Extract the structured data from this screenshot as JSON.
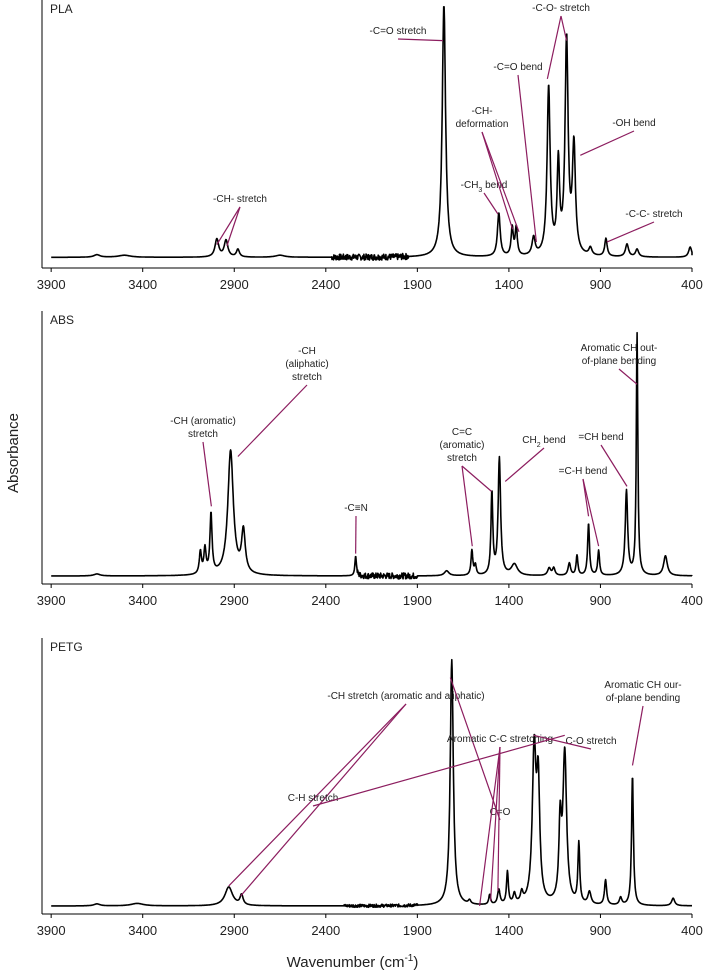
{
  "figure": {
    "y_label": "Absorbance",
    "x_label_main": "Wavenumber (cm",
    "x_label_sup": "-1",
    "x_label_end": ")"
  },
  "chart_data": [
    {
      "type": "line",
      "name": "PLA",
      "panel_label": "PLA",
      "xlabel": "Wavenumber (cm-1)",
      "ylabel": "Absorbance",
      "xlim": [
        3950,
        400
      ],
      "ylim": [
        0,
        1.0
      ],
      "x_reversed": true,
      "xticks": [
        3900,
        3400,
        2900,
        2400,
        1900,
        1400,
        900,
        400
      ],
      "baseline": 0.03,
      "peaks": [
        {
          "x": 3650,
          "h": 0.01,
          "w": 20
        },
        {
          "x": 3500,
          "h": 0.008,
          "w": 40
        },
        {
          "x": 2995,
          "h": 0.07,
          "w": 12
        },
        {
          "x": 2945,
          "h": 0.065,
          "w": 12
        },
        {
          "x": 2880,
          "h": 0.03,
          "w": 10
        },
        {
          "x": 2650,
          "h": 0.008,
          "w": 30
        },
        {
          "x": 1755,
          "h": 0.99,
          "w": 11
        },
        {
          "x": 1455,
          "h": 0.17,
          "w": 9
        },
        {
          "x": 1382,
          "h": 0.11,
          "w": 7
        },
        {
          "x": 1360,
          "h": 0.11,
          "w": 7
        },
        {
          "x": 1265,
          "h": 0.07,
          "w": 10
        },
        {
          "x": 1183,
          "h": 0.66,
          "w": 10
        },
        {
          "x": 1130,
          "h": 0.35,
          "w": 8
        },
        {
          "x": 1085,
          "h": 0.84,
          "w": 10
        },
        {
          "x": 1045,
          "h": 0.42,
          "w": 10
        },
        {
          "x": 955,
          "h": 0.03,
          "w": 10
        },
        {
          "x": 870,
          "h": 0.07,
          "w": 8
        },
        {
          "x": 755,
          "h": 0.05,
          "w": 10
        },
        {
          "x": 700,
          "h": 0.03,
          "w": 10
        },
        {
          "x": 410,
          "h": 0.04,
          "w": 10
        }
      ],
      "noise": [
        {
          "from": 2370,
          "to": 1950,
          "amp": 0.012
        }
      ],
      "annotations": [
        {
          "text": "-CH- stretch",
          "line_to": [
            [
              2995,
              0.08
            ],
            [
              2940,
              0.075
            ]
          ]
        },
        {
          "text": "-C=O stretch",
          "line_to": [
            [
              1760,
              0.88
            ]
          ]
        },
        {
          "text": "-CH3 bend",
          "line_to": [
            [
              1460,
              0.2
            ]
          ]
        },
        {
          "text": "-CH- deformation",
          "line_to": [
            [
              1380,
              0.14
            ],
            [
              1345,
              0.13
            ]
          ]
        },
        {
          "text": "-C=O bend",
          "line_to": [
            [
              1250,
              0.09
            ]
          ]
        },
        {
          "text": "-C-O- stretch",
          "line_to": [
            [
              1190,
              0.73
            ],
            [
              1085,
              0.88
            ]
          ]
        },
        {
          "text": "-OH bend",
          "line_to": [
            [
              1010,
              0.43
            ]
          ]
        },
        {
          "text": "-C-C- stretch",
          "line_to": [
            [
              865,
              0.09
            ]
          ]
        }
      ]
    },
    {
      "type": "line",
      "name": "ABS",
      "panel_label": "ABS",
      "xlabel": "Wavenumber (cm-1)",
      "ylabel": "Absorbance",
      "xlim": [
        3950,
        400
      ],
      "ylim": [
        0,
        1.0
      ],
      "x_reversed": true,
      "xticks": [
        3900,
        3400,
        2900,
        2400,
        1900,
        1400,
        900,
        400
      ],
      "baseline": 0.02,
      "peaks": [
        {
          "x": 3650,
          "h": 0.008,
          "w": 20
        },
        {
          "x": 3085,
          "h": 0.09,
          "w": 7
        },
        {
          "x": 3060,
          "h": 0.1,
          "w": 7
        },
        {
          "x": 3027,
          "h": 0.24,
          "w": 7
        },
        {
          "x": 2920,
          "h": 0.5,
          "w": 18
        },
        {
          "x": 2850,
          "h": 0.17,
          "w": 12
        },
        {
          "x": 2237,
          "h": 0.08,
          "w": 5
        },
        {
          "x": 1740,
          "h": 0.02,
          "w": 15
        },
        {
          "x": 1602,
          "h": 0.1,
          "w": 6
        },
        {
          "x": 1583,
          "h": 0.04,
          "w": 6
        },
        {
          "x": 1493,
          "h": 0.33,
          "w": 6
        },
        {
          "x": 1452,
          "h": 0.47,
          "w": 8
        },
        {
          "x": 1370,
          "h": 0.045,
          "w": 20
        },
        {
          "x": 1180,
          "h": 0.03,
          "w": 10
        },
        {
          "x": 1155,
          "h": 0.03,
          "w": 8
        },
        {
          "x": 1070,
          "h": 0.05,
          "w": 8
        },
        {
          "x": 1028,
          "h": 0.08,
          "w": 6
        },
        {
          "x": 965,
          "h": 0.21,
          "w": 6
        },
        {
          "x": 910,
          "h": 0.1,
          "w": 6
        },
        {
          "x": 758,
          "h": 0.34,
          "w": 8
        },
        {
          "x": 700,
          "h": 0.97,
          "w": 5
        },
        {
          "x": 545,
          "h": 0.08,
          "w": 12
        }
      ],
      "noise": [
        {
          "from": 2230,
          "to": 1900,
          "amp": 0.012
        }
      ],
      "annotations": [
        {
          "text": "-CH (aromatic) stretch",
          "line_to": [
            [
              3025,
              0.3
            ]
          ]
        },
        {
          "text": "-CH (aliphatic) stretch",
          "line_to": [
            [
              2880,
              0.5
            ]
          ]
        },
        {
          "text": "-C≡N",
          "line_to": [
            [
              2237,
              0.11
            ]
          ]
        },
        {
          "text": "C=C (aromatic) stretch",
          "line_to": [
            [
              1600,
              0.14
            ],
            [
              1495,
              0.36
            ]
          ]
        },
        {
          "text": "CH2 bend",
          "line_to": [
            [
              1420,
              0.4
            ]
          ]
        },
        {
          "text": "=C-H bend",
          "line_to": [
            [
              965,
              0.26
            ],
            [
              910,
              0.14
            ]
          ]
        },
        {
          "text": "=CH bend",
          "line_to": [
            [
              755,
              0.38
            ]
          ]
        },
        {
          "text": "Aromatic CH out-of-plane bending",
          "line_to": [
            [
              700,
              0.79
            ]
          ]
        }
      ]
    },
    {
      "type": "line",
      "name": "PETG",
      "panel_label": "PETG",
      "xlabel": "Wavenumber (cm-1)",
      "ylabel": "Absorbance",
      "xlim": [
        3950,
        400
      ],
      "ylim": [
        0,
        1.0
      ],
      "x_reversed": true,
      "xticks": [
        3900,
        3400,
        2900,
        2400,
        1900,
        1400,
        900,
        400
      ],
      "baseline": 0.02,
      "peaks": [
        {
          "x": 3650,
          "h": 0.008,
          "w": 20
        },
        {
          "x": 3430,
          "h": 0.01,
          "w": 40
        },
        {
          "x": 2930,
          "h": 0.075,
          "w": 25
        },
        {
          "x": 2860,
          "h": 0.04,
          "w": 10
        },
        {
          "x": 1712,
          "h": 0.98,
          "w": 10
        },
        {
          "x": 1615,
          "h": 0.015,
          "w": 8
        },
        {
          "x": 1505,
          "h": 0.04,
          "w": 6
        },
        {
          "x": 1455,
          "h": 0.06,
          "w": 8
        },
        {
          "x": 1408,
          "h": 0.13,
          "w": 6
        },
        {
          "x": 1370,
          "h": 0.04,
          "w": 8
        },
        {
          "x": 1330,
          "h": 0.04,
          "w": 8
        },
        {
          "x": 1262,
          "h": 0.6,
          "w": 12
        },
        {
          "x": 1240,
          "h": 0.45,
          "w": 10
        },
        {
          "x": 1120,
          "h": 0.3,
          "w": 8
        },
        {
          "x": 1095,
          "h": 0.6,
          "w": 12
        },
        {
          "x": 1018,
          "h": 0.24,
          "w": 6
        },
        {
          "x": 960,
          "h": 0.05,
          "w": 10
        },
        {
          "x": 872,
          "h": 0.1,
          "w": 7
        },
        {
          "x": 790,
          "h": 0.03,
          "w": 8
        },
        {
          "x": 725,
          "h": 0.52,
          "w": 6
        },
        {
          "x": 503,
          "h": 0.03,
          "w": 10
        }
      ],
      "noise": [
        {
          "from": 2300,
          "to": 1900,
          "amp": 0.006
        }
      ],
      "annotations": [
        {
          "text": "-CH stretch (aromatic and aliphatic)",
          "line_to": [
            [
              2930,
              0.1
            ],
            [
              2865,
              0.06
            ]
          ]
        },
        {
          "text": "C=O",
          "line_to": [
            [
              1720,
              0.93
            ]
          ]
        },
        {
          "text": "Aromatic C-C stretching",
          "line_to": [
            [
              1560,
              0.02
            ],
            [
              1500,
              0.04
            ],
            [
              1460,
              0.08
            ]
          ]
        },
        {
          "text": "C-O stretch",
          "line_to": [
            [
              1265,
              0.7
            ]
          ]
        },
        {
          "text": "C-H stretch",
          "line_to": [
            [
              1095,
              0.7
            ]
          ]
        },
        {
          "text": "Aromatic CH our-of-plane bending",
          "line_to": [
            [
              725,
              0.58
            ]
          ]
        }
      ]
    }
  ]
}
